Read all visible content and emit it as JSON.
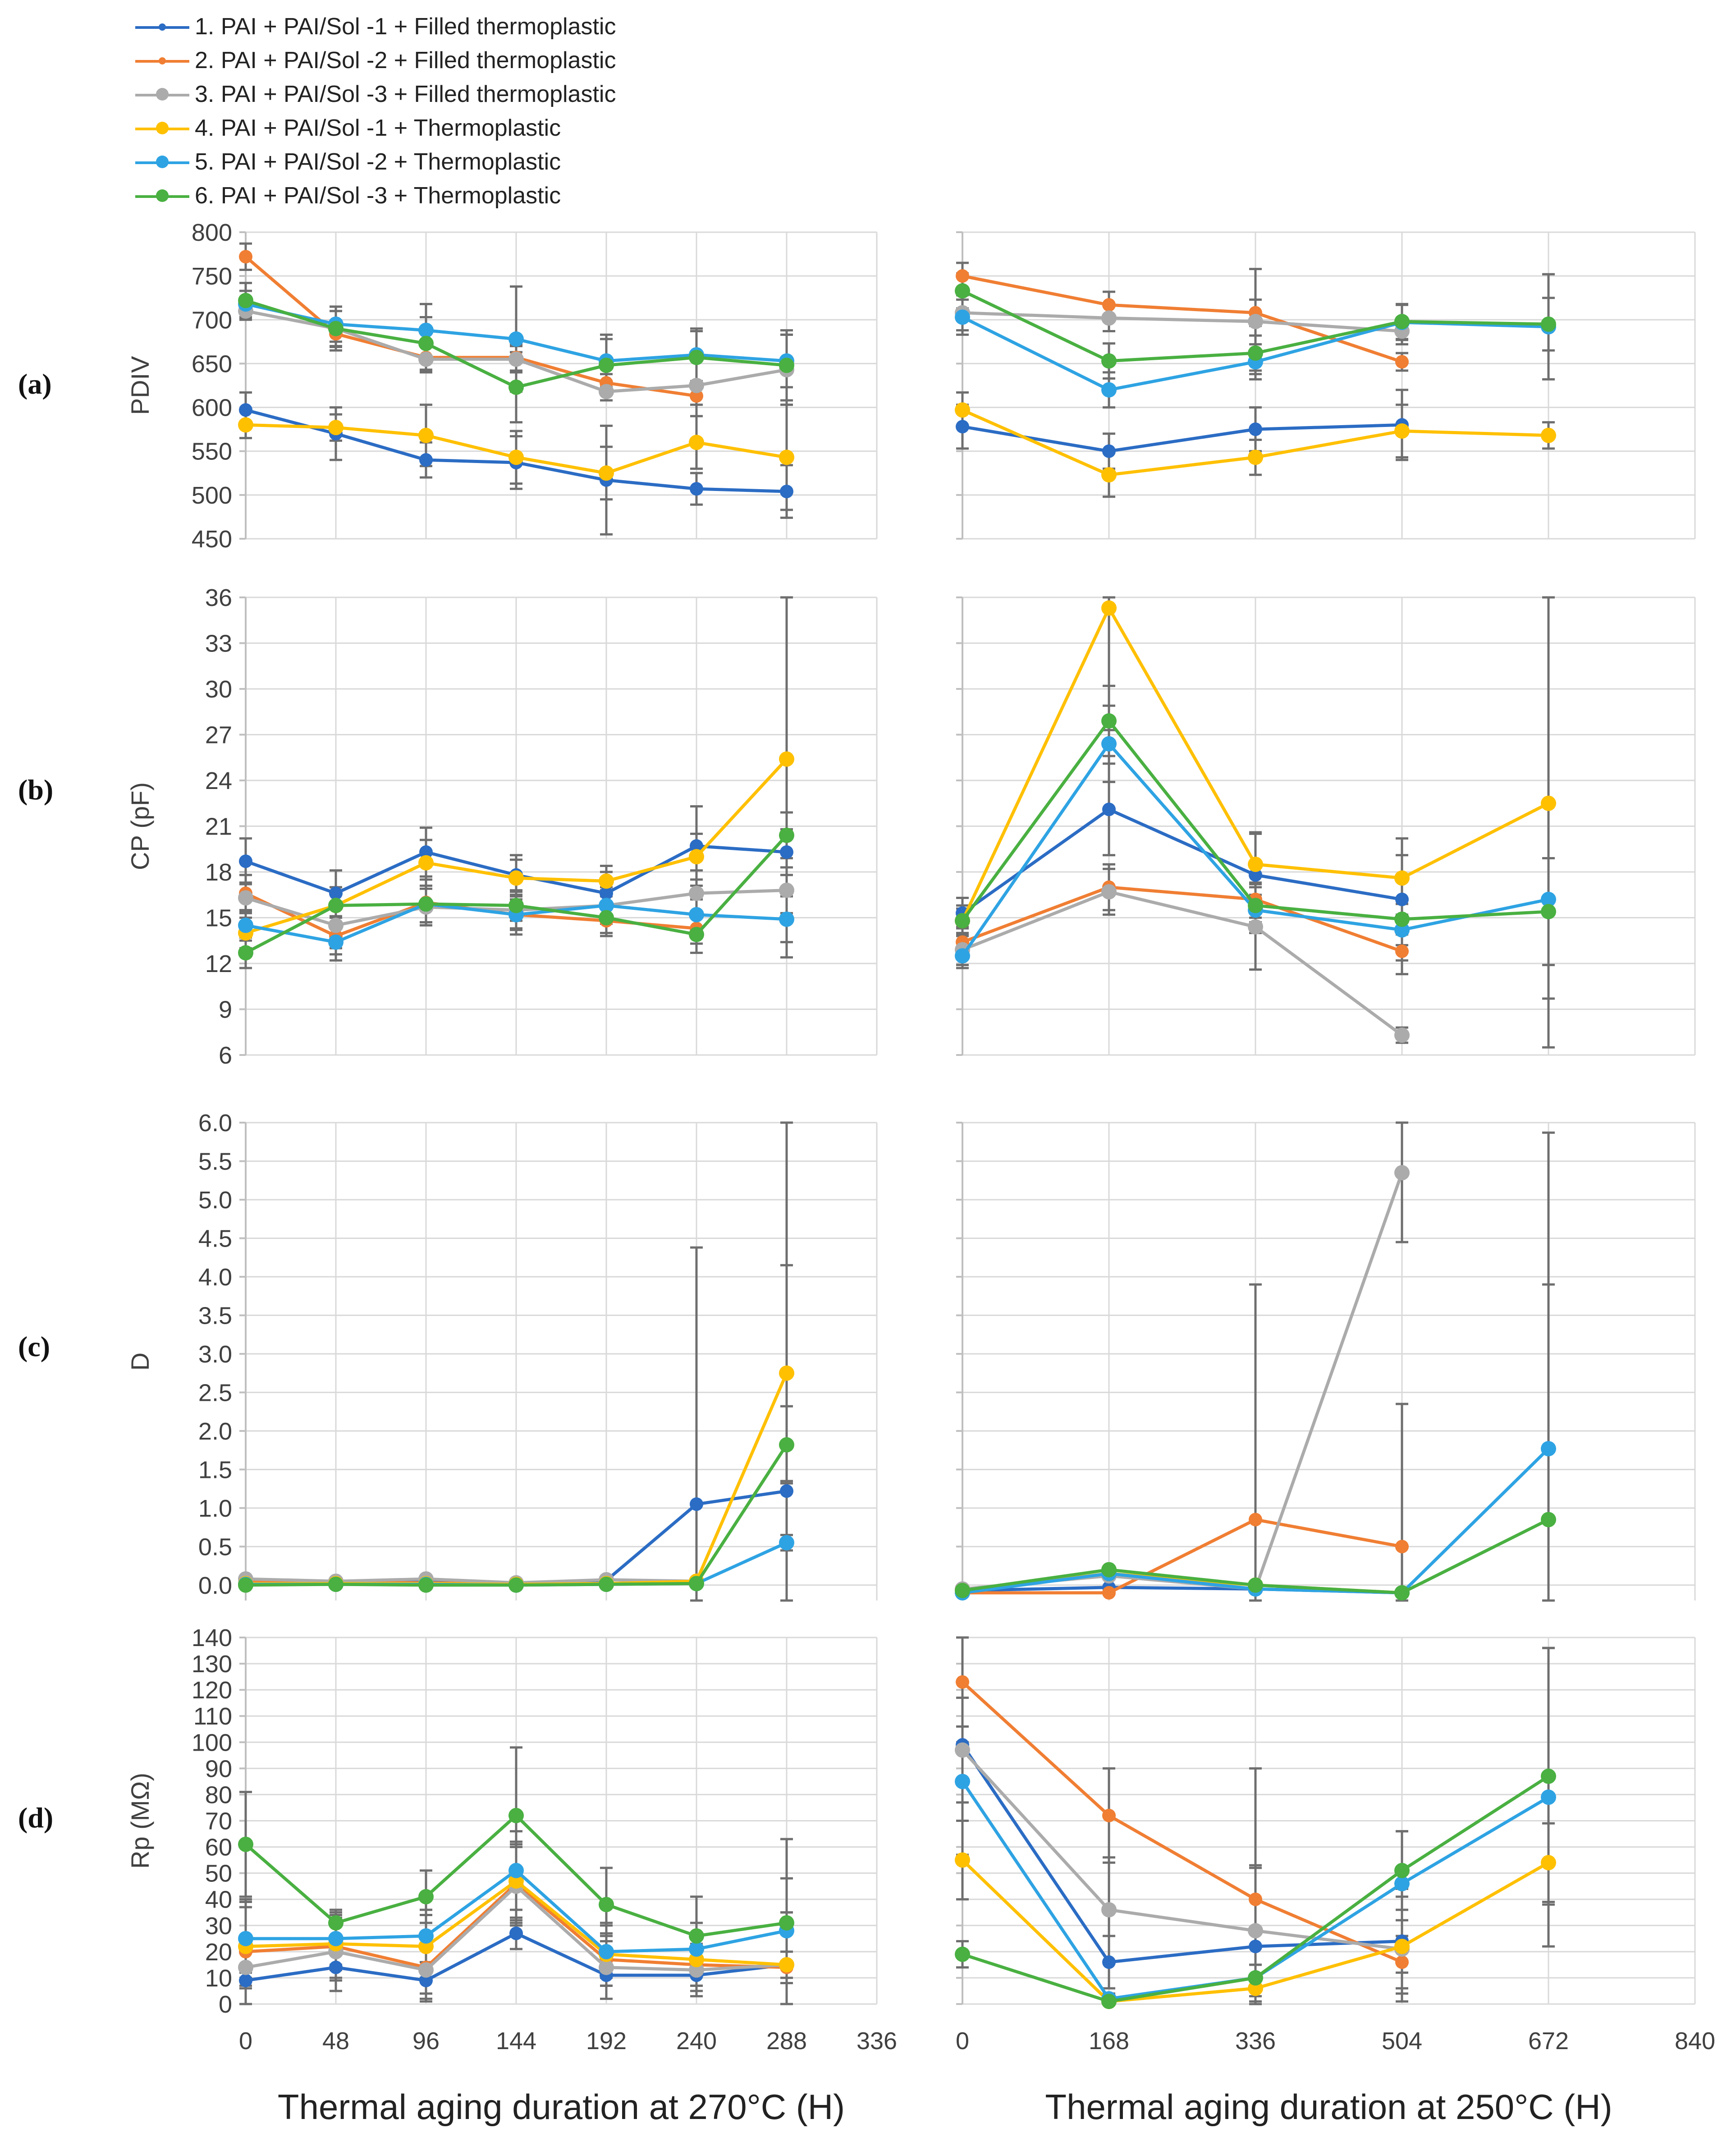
{
  "legend": [
    {
      "label": "1. PAI + PAI/Sol -1 + Filled thermoplastic",
      "color": "#2B6CC4",
      "marker": "small"
    },
    {
      "label": "2. PAI + PAI/Sol -2 + Filled thermoplastic",
      "color": "#F07E33",
      "marker": "small"
    },
    {
      "label": "3. PAI + PAI/Sol -3 + Filled thermoplastic",
      "color": "#ABABAB",
      "marker": "large"
    },
    {
      "label": "4. PAI + PAI/Sol -1 + Thermoplastic",
      "color": "#FFC000",
      "marker": "large"
    },
    {
      "label": "5. PAI + PAI/Sol -2 + Thermoplastic",
      "color": "#2EA3E3",
      "marker": "large"
    },
    {
      "label": "6. PAI + PAI/Sol -3 + Thermoplastic",
      "color": "#49B041",
      "marker": "large"
    }
  ],
  "panel_labels": [
    "(a)",
    "(b)",
    "(c)",
    "(d)"
  ],
  "chart_data": {
    "type": "line",
    "error_bars": true,
    "grid": true,
    "x_axes": {
      "left": {
        "xlabel": "Thermal aging duration at 270°C (H)",
        "xlim": [
          0,
          336
        ],
        "ticks": [
          0,
          48,
          96,
          144,
          192,
          240,
          288,
          336
        ],
        "x": [
          0,
          48,
          96,
          144,
          192,
          240,
          288
        ]
      },
      "right": {
        "xlabel": "Thermal aging duration at 250°C (H)",
        "xlim": [
          0,
          840
        ],
        "ticks": [
          0,
          168,
          336,
          504,
          672,
          840
        ],
        "x": [
          0,
          168,
          336,
          504,
          672
        ]
      }
    },
    "panels": [
      {
        "id": "a",
        "ylabel": "PDIV",
        "ylim": [
          450,
          800
        ],
        "yticks": [
          450,
          500,
          550,
          600,
          650,
          700,
          750,
          800
        ],
        "ytick_labels": [
          "450",
          "500",
          "550",
          "600",
          "650",
          "700",
          "750",
          "800"
        ],
        "left": [
          {
            "values": [
              597,
              570,
              540,
              537,
              517,
              507,
              504
            ],
            "err": [
              20,
              30,
              20,
              30,
              62,
              18,
              30
            ]
          },
          {
            "values": [
              772,
              684,
              657,
              657,
              628,
              613,
              null
            ],
            "err": [
              15,
              15,
              15,
              15,
              10,
              10,
              null
            ]
          },
          {
            "values": [
              710,
              690,
              655,
              655,
              618,
              625,
              643
            ],
            "err": [
              10,
              25,
              15,
              15,
              10,
              35,
              40
            ]
          },
          {
            "values": [
              580,
              577,
              568,
              543,
              525,
              560,
              543
            ],
            "err": [
              15,
              15,
              35,
              30,
              30,
              30,
              60
            ]
          },
          {
            "values": [
              718,
              695,
              688,
              678,
              653,
              660,
              653
            ],
            "err": [
              15,
              20,
              30,
              60,
              30,
              30,
              30
            ]
          },
          {
            "values": [
              722,
              690,
              673,
              623,
              648,
              657,
              648
            ],
            "err": [
              20,
              20,
              30,
              40,
              30,
              30,
              40
            ]
          }
        ],
        "right": [
          {
            "values": [
              578,
              550,
              575,
              580,
              null
            ],
            "err": [
              25,
              20,
              25,
              40,
              null
            ]
          },
          {
            "values": [
              750,
              717,
              708,
              652,
              null
            ],
            "err": [
              15,
              15,
              15,
              10,
              null
            ]
          },
          {
            "values": [
              708,
              702,
              698,
              687,
              null
            ],
            "err": [
              20,
              15,
              60,
              15,
              null
            ]
          },
          {
            "values": [
              597,
              523,
              543,
              573,
              568
            ],
            "err": [
              20,
              25,
              20,
              30,
              15
            ]
          },
          {
            "values": [
              703,
              620,
              652,
              697,
              692
            ],
            "err": [
              20,
              20,
              20,
              20,
              60
            ]
          },
          {
            "values": [
              733,
              653,
              662,
              698,
              695
            ],
            "err": [
              20,
              20,
              20,
              20,
              30
            ]
          }
        ]
      },
      {
        "id": "b",
        "ylabel": "CP (pF)",
        "ylim": [
          6,
          36
        ],
        "yticks": [
          6,
          9,
          12,
          15,
          18,
          21,
          24,
          27,
          30,
          33,
          36
        ],
        "ytick_labels": [
          "6",
          "9",
          "12",
          "15",
          "18",
          "21",
          "24",
          "27",
          "30",
          "33",
          "36"
        ],
        "left": [
          {
            "values": [
              18.7,
              16.6,
              19.3,
              17.8,
              16.6,
              19.7,
              19.3
            ],
            "err": [
              1.5,
              1.5,
              1.6,
              1.3,
              1.4,
              2.6,
              1.5
            ]
          },
          {
            "values": [
              16.6,
              13.8,
              16.0,
              15.2,
              14.8,
              14.3,
              null
            ],
            "err": [
              1.2,
              1.2,
              1.5,
              1.3,
              1.0,
              1.0,
              null
            ]
          },
          {
            "values": [
              16.3,
              14.5,
              15.7,
              15.5,
              15.8,
              16.6,
              16.8
            ],
            "err": [
              1.0,
              1.5,
              1.2,
              1.2,
              1.2,
              1.5,
              1.5
            ]
          },
          {
            "values": [
              14.0,
              15.8,
              18.6,
              17.6,
              17.4,
              19.0,
              25.4
            ],
            "err": [
              1.0,
              1.2,
              1.5,
              1.2,
              1.0,
              1.5,
              13.0
            ]
          },
          {
            "values": [
              14.5,
              13.4,
              15.9,
              15.2,
              15.8,
              15.2,
              14.9
            ],
            "err": [
              1.0,
              1.2,
              1.2,
              1.0,
              1.0,
              1.0,
              1.5
            ]
          },
          {
            "values": [
              12.7,
              15.8,
              15.9,
              15.8,
              15.0,
              13.9,
              20.4
            ],
            "err": [
              1.0,
              1.2,
              1.2,
              1.0,
              1.0,
              1.2,
              1.5
            ]
          }
        ],
        "right": [
          {
            "values": [
              15.3,
              22.1,
              17.8,
              16.2,
              null
            ],
            "err": [
              1.0,
              3.0,
              2.8,
              4.0,
              null
            ]
          },
          {
            "values": [
              13.4,
              17.0,
              16.2,
              12.8,
              null
            ],
            "err": [
              1.0,
              1.5,
              1.5,
              1.5,
              null
            ]
          },
          {
            "values": [
              12.9,
              16.7,
              14.4,
              7.3,
              null
            ],
            "err": [
              1.0,
              1.5,
              2.8,
              0.5,
              null
            ]
          },
          {
            "values": [
              14.8,
              35.3,
              18.5,
              17.6,
              22.5
            ],
            "err": [
              1.0,
              8.0,
              2.0,
              1.5,
              16.0
            ]
          },
          {
            "values": [
              12.5,
              26.4,
              15.5,
              14.2,
              16.2
            ],
            "err": [
              0.8,
              2.5,
              1.5,
              1.0,
              6.5
            ]
          },
          {
            "values": [
              14.8,
              27.9,
              15.8,
              14.9,
              15.4
            ],
            "err": [
              0.8,
              2.3,
              1.5,
              1.0,
              3.5
            ]
          }
        ]
      },
      {
        "id": "c",
        "ylabel": "D",
        "ylim": [
          -0.2,
          6.0
        ],
        "yticks": [
          0,
          0.5,
          1.0,
          1.5,
          2.0,
          2.5,
          3.0,
          3.5,
          4.0,
          4.5,
          5.0,
          5.5,
          6.0
        ],
        "ytick_labels": [
          "0.0",
          "0.5",
          "1.0",
          "1.5",
          "2.0",
          "2.5",
          "3.0",
          "3.5",
          "4.0",
          "4.5",
          "5.0",
          "5.5",
          "6.0"
        ],
        "left": [
          {
            "values": [
              0.06,
              0.05,
              0.06,
              0.03,
              0.06,
              1.05,
              1.22
            ],
            "err": [
              0.03,
              0.03,
              0.03,
              0.02,
              0.03,
              3.33,
              5.0
            ]
          },
          {
            "values": [
              0.04,
              0.03,
              0.03,
              0.01,
              0.02,
              0.03,
              null
            ],
            "err": [
              0.02,
              0.02,
              0.02,
              0.01,
              0.02,
              0.02,
              null
            ]
          },
          {
            "values": [
              0.08,
              0.05,
              0.08,
              0.03,
              0.07,
              0.05,
              null
            ],
            "err": [
              0.03,
              0.03,
              0.03,
              0.02,
              0.03,
              0.02,
              null
            ]
          },
          {
            "values": [
              0.02,
              0.02,
              0.02,
              0.01,
              0.02,
              0.05,
              2.75
            ],
            "err": [
              0.01,
              0.01,
              0.01,
              0.01,
              0.01,
              0.02,
              1.4
            ]
          },
          {
            "values": [
              0.01,
              0.01,
              0.01,
              0.0,
              0.01,
              0.02,
              0.55
            ],
            "err": [
              0.01,
              0.01,
              0.01,
              0.01,
              0.01,
              0.01,
              0.1
            ]
          },
          {
            "values": [
              0.0,
              0.01,
              0.0,
              0.0,
              0.01,
              0.02,
              1.82
            ],
            "err": [
              0.01,
              0.01,
              0.01,
              0.01,
              0.01,
              0.01,
              0.5
            ]
          }
        ],
        "right": [
          {
            "values": [
              -0.07,
              -0.03,
              -0.05,
              -0.1,
              null
            ],
            "err": [
              0.02,
              0.02,
              0.02,
              0.02,
              null
            ]
          },
          {
            "values": [
              -0.1,
              -0.1,
              0.85,
              0.5,
              null
            ],
            "err": [
              0.02,
              0.02,
              3.05,
              1.85,
              null
            ]
          },
          {
            "values": [
              -0.05,
              0.12,
              -0.05,
              5.35,
              null
            ],
            "err": [
              0.02,
              0.03,
              0.02,
              0.9,
              null
            ]
          },
          {
            "values": [
              -0.07,
              0.15,
              0.0,
              -0.1,
              null
            ],
            "err": [
              0.02,
              0.03,
              0.02,
              0.02,
              null
            ]
          },
          {
            "values": [
              -0.1,
              0.15,
              -0.05,
              -0.1,
              1.77
            ],
            "err": [
              0.02,
              0.03,
              0.02,
              0.02,
              4.1
            ]
          },
          {
            "values": [
              -0.07,
              0.2,
              0.0,
              -0.1,
              0.85
            ],
            "err": [
              0.02,
              0.03,
              0.02,
              0.02,
              3.05
            ]
          }
        ]
      },
      {
        "id": "d",
        "ylabel": "Rp (MΩ)",
        "ylim": [
          0,
          140
        ],
        "yticks": [
          0,
          10,
          20,
          30,
          40,
          50,
          60,
          70,
          80,
          90,
          100,
          110,
          120,
          130,
          140
        ],
        "ytick_labels": [
          "0",
          "10",
          "20",
          "30",
          "40",
          "50",
          "60",
          "70",
          "80",
          "90",
          "100",
          "110",
          "120",
          "130",
          "140"
        ],
        "left": [
          {
            "values": [
              9,
              14,
              9,
              27,
              11,
              11,
              15
            ],
            "err": [
              3,
              5,
              5,
              6,
              4,
              4,
              5
            ]
          },
          {
            "values": [
              20,
              22,
              14,
              46,
              17,
              15,
              14
            ],
            "err": [
              20,
              12,
              12,
              15,
              10,
              10,
              15
            ]
          },
          {
            "values": [
              14,
              20,
              13,
              45,
              14,
              13,
              15
            ],
            "err": [
              25,
              15,
              12,
              15,
              12,
              10,
              20
            ]
          },
          {
            "values": [
              22,
              23,
              22,
              47,
              19,
              17,
              15
            ],
            "err": [
              15,
              10,
              12,
              15,
              12,
              10,
              20
            ]
          },
          {
            "values": [
              25,
              25,
              26,
              51,
              20,
              21,
              28
            ],
            "err": [
              15,
              10,
              10,
              15,
              10,
              10,
              20
            ]
          },
          {
            "values": [
              61,
              31,
              41,
              72,
              38,
              26,
              31
            ],
            "err": [
              20,
              5,
              10,
              26,
              14,
              15,
              32
            ]
          }
        ],
        "right": [
          {
            "values": [
              99,
              16,
              22,
              24,
              null
            ],
            "err": [
              42,
              10,
              30,
              20,
              null
            ]
          },
          {
            "values": [
              123,
              72,
              40,
              16,
              null
            ],
            "err": [
              17,
              18,
              50,
              10,
              null
            ]
          },
          {
            "values": [
              97,
              36,
              28,
              21,
              null
            ],
            "err": [
              20,
              20,
              25,
              20,
              null
            ]
          },
          {
            "values": [
              55,
              1,
              6,
              22,
              54
            ],
            "err": [
              15,
              2,
              5,
              10,
              15
            ]
          },
          {
            "values": [
              85,
              2,
              10,
              46,
              79
            ],
            "err": [
              15,
              2,
              5,
              20,
              57
            ]
          },
          {
            "values": [
              19,
              1,
              10,
              51,
              87
            ],
            "err": [
              5,
              2,
              5,
              15,
              49
            ]
          }
        ]
      }
    ]
  }
}
